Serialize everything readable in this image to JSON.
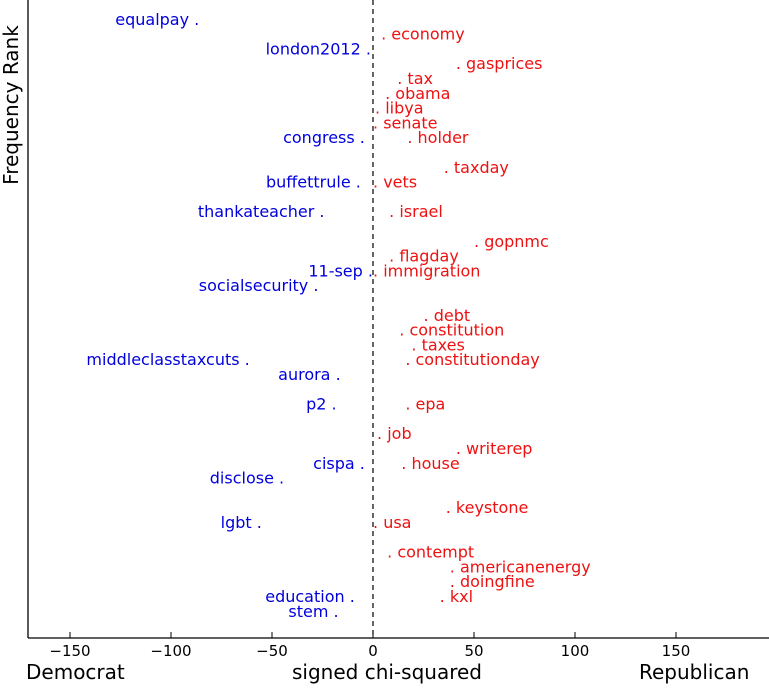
{
  "chart_data": {
    "type": "scatter",
    "title": "",
    "xlabel": "signed chi-squared",
    "ylabel": "Frequency Rank",
    "left_label": "Democrat",
    "right_label": "Republican",
    "xlim": [
      -170,
      190
    ],
    "xticks": [
      -150,
      -100,
      -50,
      0,
      50,
      100,
      150
    ],
    "xtick_labels": [
      "−150",
      "−100",
      "−50",
      "0",
      "50",
      "100",
      "150"
    ],
    "zero_line": "dashed vertical line at x = 0",
    "grid": false,
    "colors": {
      "democrat": "#0000dd",
      "republican": "#ee1111",
      "axis": "#000000"
    },
    "points_democrat": [
      {
        "label": "equalpay",
        "x": -87,
        "rank": 1
      },
      {
        "label": "london2012",
        "x": -2,
        "rank": 3
      },
      {
        "label": "congress",
        "x": -5,
        "rank": 9
      },
      {
        "label": "buffettrule",
        "x": -7,
        "rank": 12
      },
      {
        "label": "thankateacher",
        "x": -25,
        "rank": 14
      },
      {
        "label": "11-sep",
        "x": -1,
        "rank": 18
      },
      {
        "label": "socialsecurity",
        "x": -28,
        "rank": 19
      },
      {
        "label": "middleclasstaxcuts",
        "x": -62,
        "rank": 24
      },
      {
        "label": "aurora",
        "x": -17,
        "rank": 25
      },
      {
        "label": "p2",
        "x": -19,
        "rank": 27
      },
      {
        "label": "cispa",
        "x": -5,
        "rank": 31
      },
      {
        "label": "disclose",
        "x": -45,
        "rank": 32
      },
      {
        "label": "lgbt",
        "x": -56,
        "rank": 35
      },
      {
        "label": "education",
        "x": -10,
        "rank": 40
      },
      {
        "label": "stem",
        "x": -18,
        "rank": 41
      }
    ],
    "points_republican": [
      {
        "label": "economy",
        "x": 5,
        "rank": 2
      },
      {
        "label": "gasprices",
        "x": 42,
        "rank": 4
      },
      {
        "label": "tax",
        "x": 13,
        "rank": 5
      },
      {
        "label": "obama",
        "x": 7,
        "rank": 6
      },
      {
        "label": "libya",
        "x": 2,
        "rank": 7
      },
      {
        "label": "senate",
        "x": 1,
        "rank": 8
      },
      {
        "label": "holder",
        "x": 18,
        "rank": 9
      },
      {
        "label": "taxday",
        "x": 36,
        "rank": 11
      },
      {
        "label": "vets",
        "x": 1,
        "rank": 12
      },
      {
        "label": "israel",
        "x": 9,
        "rank": 14
      },
      {
        "label": "gopnmc",
        "x": 51,
        "rank": 16
      },
      {
        "label": "flagday",
        "x": 9,
        "rank": 17
      },
      {
        "label": "immigration",
        "x": 1,
        "rank": 18
      },
      {
        "label": "debt",
        "x": 26,
        "rank": 21
      },
      {
        "label": "constitution",
        "x": 14,
        "rank": 22
      },
      {
        "label": "taxes",
        "x": 20,
        "rank": 23
      },
      {
        "label": "constitutionday",
        "x": 17,
        "rank": 24
      },
      {
        "label": "epa",
        "x": 17,
        "rank": 27
      },
      {
        "label": "job",
        "x": 3,
        "rank": 29
      },
      {
        "label": "writerep",
        "x": 42,
        "rank": 30
      },
      {
        "label": "house",
        "x": 15,
        "rank": 31
      },
      {
        "label": "keystone",
        "x": 37,
        "rank": 34
      },
      {
        "label": "usa",
        "x": 1,
        "rank": 35
      },
      {
        "label": "contempt",
        "x": 8,
        "rank": 37
      },
      {
        "label": "americanenergy",
        "x": 39,
        "rank": 38
      },
      {
        "label": "doingfine",
        "x": 39,
        "rank": 39
      },
      {
        "label": "kxl",
        "x": 34,
        "rank": 40
      }
    ]
  }
}
